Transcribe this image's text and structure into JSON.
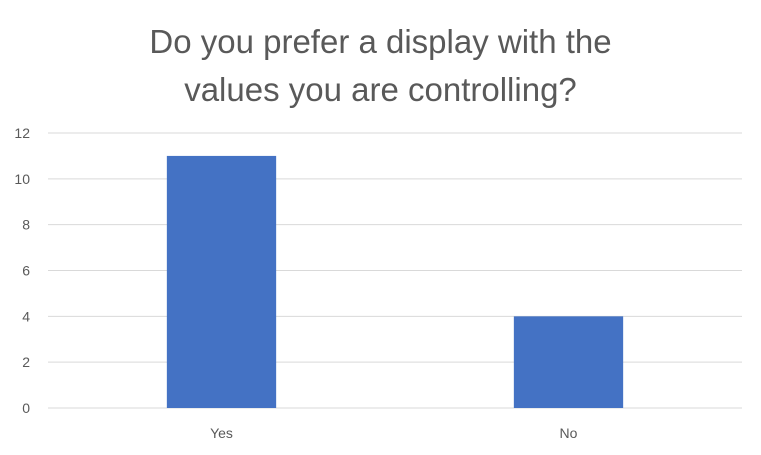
{
  "chart_data": {
    "type": "bar",
    "title_lines": [
      "Do you prefer a display with the",
      "values you are controlling?"
    ],
    "categories": [
      "Yes",
      "No"
    ],
    "values": [
      11,
      4
    ],
    "ylim": [
      0,
      12
    ],
    "yticks": [
      0,
      2,
      4,
      6,
      8,
      10,
      12
    ],
    "grid": true,
    "bar_color": "#4472C4",
    "grid_color": "#D9D9D9",
    "text_color": "#595959"
  }
}
